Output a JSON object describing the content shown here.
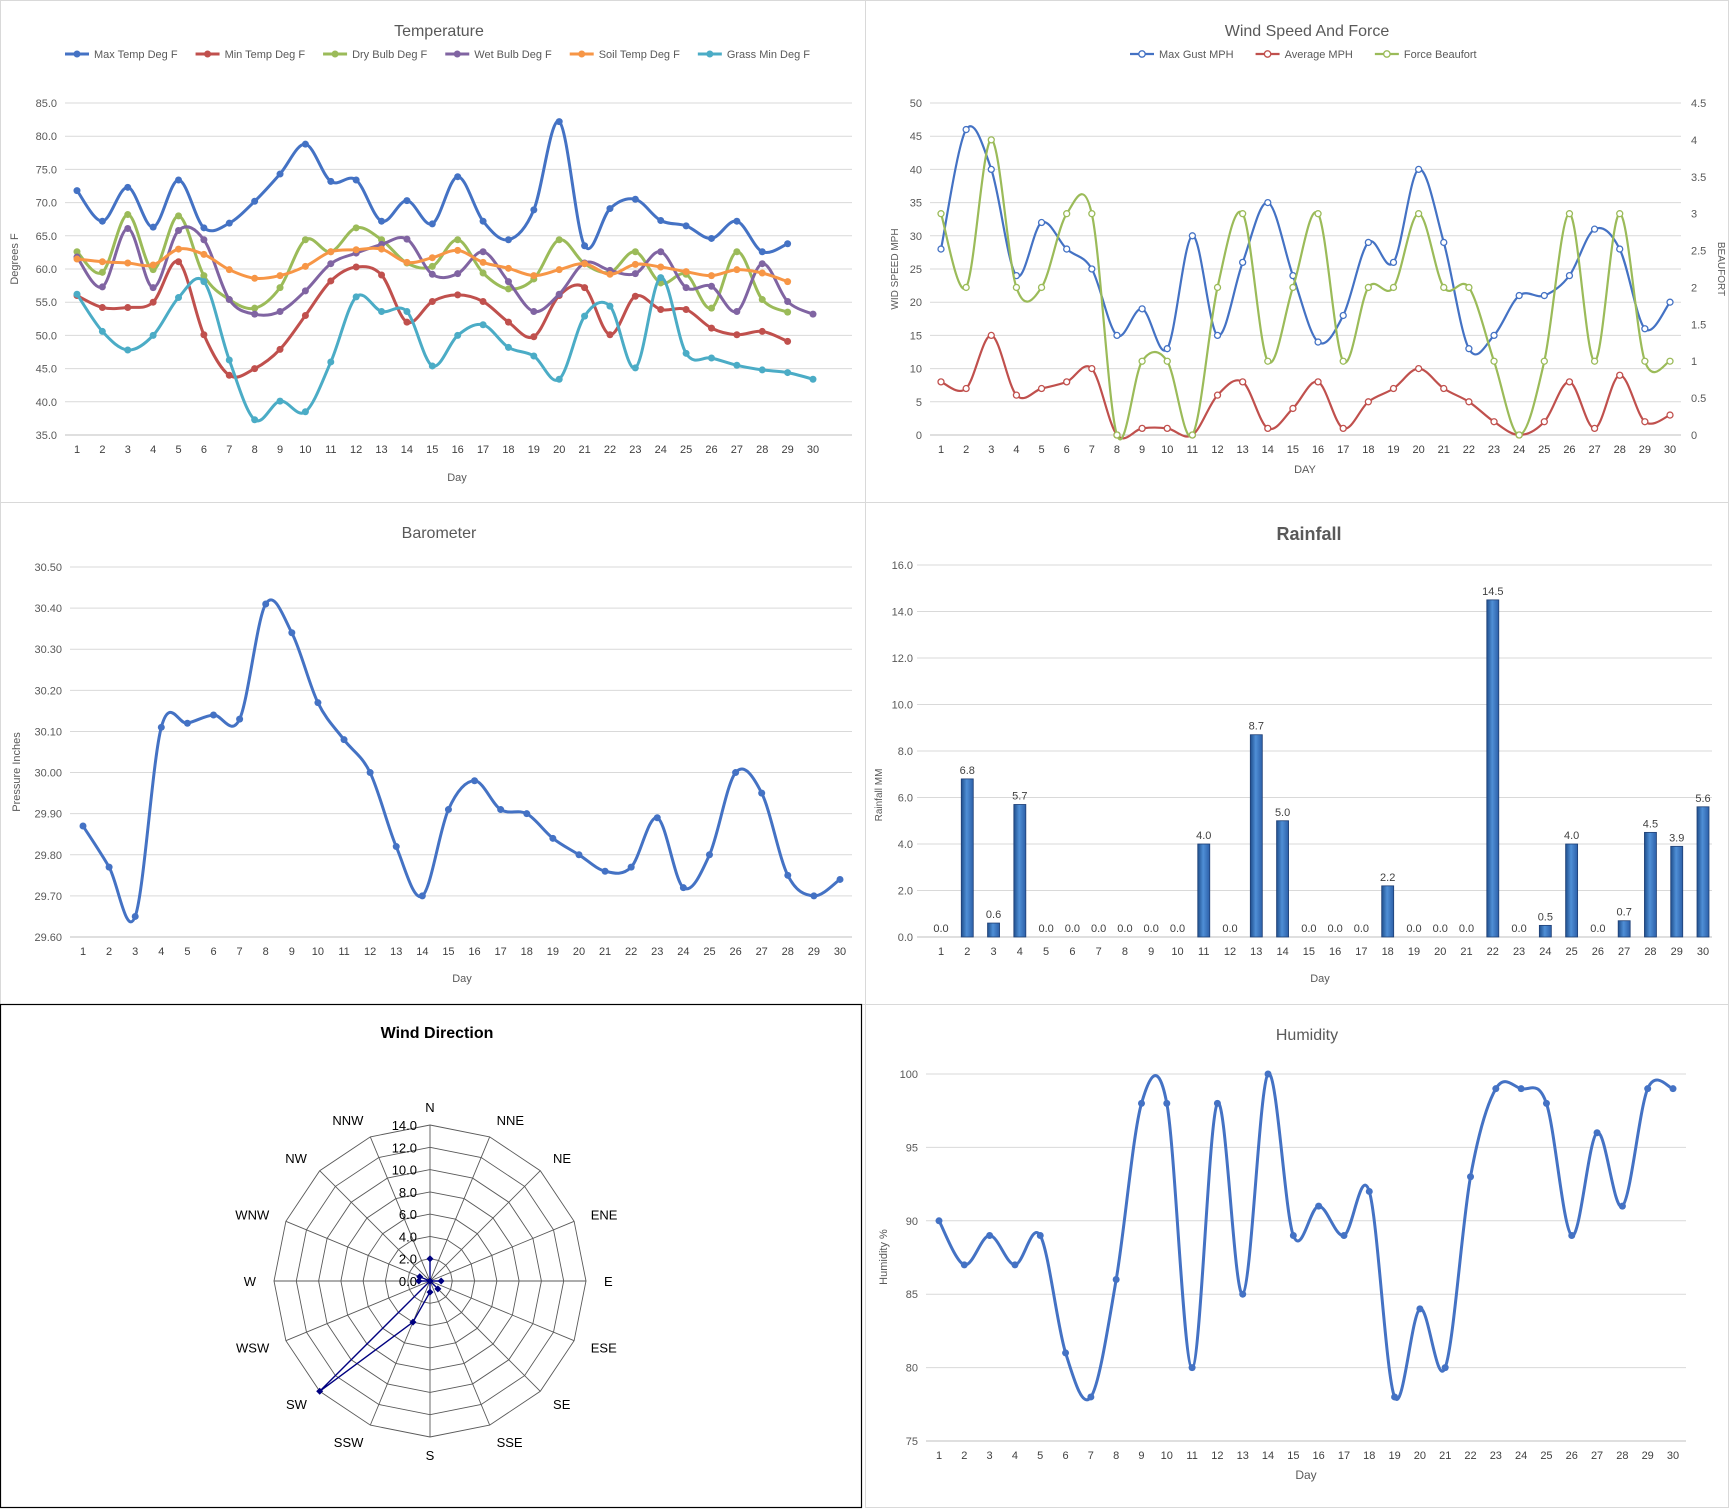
{
  "days": [
    1,
    2,
    3,
    4,
    5,
    6,
    7,
    8,
    9,
    10,
    11,
    12,
    13,
    14,
    15,
    16,
    17,
    18,
    19,
    20,
    21,
    22,
    23,
    24,
    25,
    26,
    27,
    28,
    29,
    30
  ],
  "chart_data": [
    {
      "id": "temperature",
      "type": "line",
      "title": "Temperature",
      "xlabel": "Day",
      "ylabel": "Degrees F",
      "ylim": [
        35.0,
        85.0
      ],
      "ystep": 5,
      "ydecimals": 1,
      "grid": true,
      "legend": "top",
      "series": [
        {
          "name": "Max Temp Deg F",
          "color": "#4472c4",
          "values": [
            71.8,
            67.2,
            72.3,
            66.3,
            73.4,
            66.2,
            66.9,
            70.2,
            74.3,
            78.8,
            73.2,
            73.4,
            67.2,
            70.3,
            66.8,
            73.9,
            67.2,
            64.4,
            68.9,
            82.2,
            63.5,
            69.1,
            70.5,
            67.3,
            66.5,
            64.6,
            67.2,
            62.6,
            63.8,
            null
          ]
        },
        {
          "name": "Min Temp Deg F",
          "color": "#c0504d",
          "values": [
            56.0,
            54.2,
            54.2,
            55.0,
            61.1,
            50.1,
            44.0,
            45.0,
            47.9,
            53.0,
            58.2,
            60.3,
            59.1,
            52.0,
            55.1,
            56.1,
            55.1,
            52.0,
            49.8,
            56.0,
            57.2,
            50.1,
            55.9,
            53.9,
            53.9,
            51.1,
            50.1,
            50.6,
            49.1,
            null
          ]
        },
        {
          "name": "Dry Bulb Deg F",
          "color": "#9bbb59",
          "values": [
            62.6,
            59.5,
            68.2,
            59.9,
            68.0,
            59.0,
            55.4,
            54.1,
            57.2,
            64.4,
            62.6,
            66.2,
            64.4,
            60.9,
            60.4,
            64.4,
            59.4,
            57.0,
            58.5,
            64.4,
            60.8,
            59.5,
            62.6,
            57.9,
            59.2,
            54.1,
            62.6,
            55.4,
            53.5,
            null
          ]
        },
        {
          "name": "Wet Bulb Deg F",
          "color": "#8064a2",
          "values": [
            61.8,
            57.3,
            66.1,
            57.2,
            65.8,
            64.4,
            55.4,
            53.2,
            53.6,
            56.7,
            60.8,
            62.4,
            63.7,
            64.5,
            59.2,
            59.3,
            62.6,
            58.1,
            53.6,
            56.2,
            60.9,
            59.8,
            59.3,
            62.6,
            57.2,
            57.4,
            53.6,
            60.8,
            55.1,
            53.2
          ]
        },
        {
          "name": "Soil Temp Deg F",
          "color": "#f79646",
          "values": [
            61.5,
            61.1,
            60.9,
            60.6,
            63.0,
            62.2,
            59.9,
            58.6,
            59.0,
            60.4,
            62.6,
            62.9,
            63.0,
            61.0,
            61.7,
            62.8,
            61.0,
            60.1,
            59.0,
            59.9,
            60.8,
            59.2,
            60.7,
            60.3,
            59.6,
            59.0,
            59.9,
            59.4,
            58.1,
            null
          ]
        },
        {
          "name": "Grass Min Deg F",
          "color": "#4bacc6",
          "values": [
            56.2,
            50.6,
            47.8,
            50.0,
            55.7,
            58.1,
            46.3,
            37.3,
            40.1,
            38.5,
            46.0,
            55.8,
            53.6,
            53.6,
            45.4,
            50.0,
            51.6,
            48.2,
            46.9,
            43.4,
            52.9,
            54.4,
            45.1,
            58.7,
            47.3,
            46.6,
            45.5,
            44.8,
            44.4,
            43.4
          ]
        }
      ]
    },
    {
      "id": "wind",
      "type": "line",
      "title": "Wind Speed And Force",
      "xlabel": "DAY",
      "ylabel": "WID SPEED MPH",
      "y2label": "BEAUFORT",
      "ylim": [
        0,
        50
      ],
      "y2lim": [
        0,
        4.5
      ],
      "grid": true,
      "legend": "top",
      "series": [
        {
          "name": "Max Gust MPH",
          "color": "#4472c4",
          "axis": "y",
          "values": [
            28,
            46,
            40,
            24,
            32,
            28,
            25,
            15,
            19,
            13,
            30,
            15,
            26,
            35,
            24,
            14,
            18,
            29,
            26,
            40,
            29,
            13,
            15,
            21,
            21,
            24,
            31,
            28,
            16,
            20
          ]
        },
        {
          "name": "Average MPH",
          "color": "#c0504d",
          "axis": "y",
          "values": [
            8,
            7,
            15,
            6,
            7,
            8,
            10,
            0,
            1,
            1,
            0,
            6,
            8,
            1,
            4,
            8,
            1,
            5,
            7,
            10,
            7,
            5,
            2,
            0,
            2,
            8,
            1,
            9,
            2,
            3
          ]
        },
        {
          "name": "Force Beaufort",
          "color": "#9bbb59",
          "axis": "y2",
          "values": [
            3,
            2,
            4,
            2,
            2,
            3,
            3,
            0,
            1,
            1,
            0,
            2,
            3,
            1,
            2,
            3,
            1,
            2,
            2,
            3,
            2,
            2,
            1,
            0,
            1,
            3,
            1,
            3,
            1,
            1
          ]
        }
      ]
    },
    {
      "id": "barometer",
      "type": "line",
      "title": "Barometer",
      "xlabel": "Day",
      "ylabel": "Pressure Inches",
      "ylim": [
        29.6,
        30.5
      ],
      "grid": true,
      "series": [
        {
          "name": "",
          "color": "#4472c4",
          "values": [
            29.87,
            29.77,
            29.65,
            30.11,
            30.12,
            30.14,
            30.13,
            30.41,
            30.34,
            30.17,
            30.08,
            30.0,
            29.82,
            29.7,
            29.91,
            29.98,
            29.91,
            29.9,
            29.84,
            29.8,
            29.76,
            29.77,
            29.89,
            29.72,
            29.8,
            30.0,
            29.95,
            29.75,
            29.7,
            29.74
          ]
        }
      ]
    },
    {
      "id": "rainfall",
      "type": "bar",
      "title": "Rainfall",
      "xlabel": "Day",
      "ylabel": "Rainfall MM",
      "ylim": [
        0,
        16
      ],
      "grid": true,
      "data_labels": true,
      "values": [
        0.0,
        6.8,
        0.6,
        5.7,
        0.0,
        0.0,
        0.0,
        0.0,
        0.0,
        0.0,
        4.0,
        0.0,
        8.7,
        5.0,
        0.0,
        0.0,
        0.0,
        2.2,
        0.0,
        0.0,
        0.0,
        14.5,
        0.0,
        0.5,
        4.0,
        0.0,
        0.7,
        4.5,
        3.9,
        5.6
      ]
    },
    {
      "id": "winddir",
      "type": "radar",
      "title": "Wind Direction",
      "rlim": [
        0,
        14
      ],
      "rstep": 2,
      "categories": [
        "N",
        "NNE",
        "NE",
        "ENE",
        "E",
        "ESE",
        "SE",
        "SSE",
        "S",
        "SSW",
        "SW",
        "WSW",
        "W",
        "WNW",
        "NW",
        "NNW"
      ],
      "series": [
        {
          "name": "",
          "color": "#000080",
          "values": [
            2,
            0,
            0,
            0,
            1,
            0,
            1,
            0,
            1,
            4,
            14,
            0,
            1,
            1,
            0,
            0
          ]
        }
      ]
    },
    {
      "id": "humidity",
      "type": "line",
      "title": "Humidity",
      "xlabel": "Day",
      "ylabel": "Humidity %",
      "ylim": [
        75,
        100
      ],
      "grid": true,
      "series": [
        {
          "name": "",
          "color": "#4472c4",
          "values": [
            90,
            87,
            89,
            87,
            89,
            81,
            78,
            86,
            98,
            98,
            80,
            98,
            85,
            100,
            89,
            91,
            89,
            92,
            78,
            84,
            80,
            93,
            99,
            99,
            98,
            89,
            96,
            91,
            99,
            99
          ]
        }
      ]
    }
  ]
}
